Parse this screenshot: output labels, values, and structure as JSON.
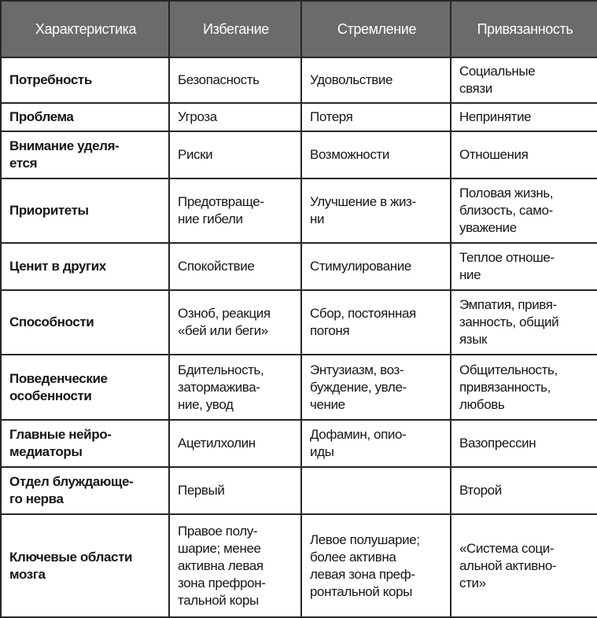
{
  "table": {
    "headers": [
      "Характеристика",
      "Избегание",
      "Стремление",
      "Привязанность"
    ],
    "rows": [
      [
        "Потребность",
        "Безопасность",
        "Удовольствие",
        "Социальные\nсвязи"
      ],
      [
        "Проблема",
        "Угроза",
        "Потеря",
        "Непринятие"
      ],
      [
        "Внимание уделя-\nется",
        "Риски",
        "Возможности",
        "Отношения"
      ],
      [
        "Приоритеты",
        "Предотвраще-\nние гибели",
        "Улучшение в жиз-\nни",
        "Половая жизнь,\nблизость, само-\nуважение"
      ],
      [
        "Ценит в других",
        "Спокойствие",
        "Стимулирование",
        "Теплое отноше-\nние"
      ],
      [
        "Способности",
        "Озноб, реакция\n«бей или беги»",
        "Сбор, постоянная\nпогоня",
        "Эмпатия, привя-\nзанность, общий\nязык"
      ],
      [
        "Поведенческие\nособенности",
        "Бдительность,\nзатормажива-\nние, увод",
        "Энтузиазм, воз-\nбуждение, увле-\nчение",
        "Общительность,\nпривязанность,\nлюбовь"
      ],
      [
        "Главные нейро-\nмедиаторы",
        "Ацетилхолин",
        "Дофамин, опио-\nиды",
        "Вазопрессин"
      ],
      [
        "Отдел блуждающе-\nго нерва",
        "Первый",
        "",
        "Второй"
      ],
      [
        "Ключевые области\nмозга",
        "Правое полу-\nшарие; менее\nактивна левая\nзона префрон-\nтальной коры",
        "Левое полушарие;\nболее активна\nлевая зона преф-\nронтальной коры",
        "«Система соци-\nальной активно-\nсти»"
      ]
    ]
  }
}
